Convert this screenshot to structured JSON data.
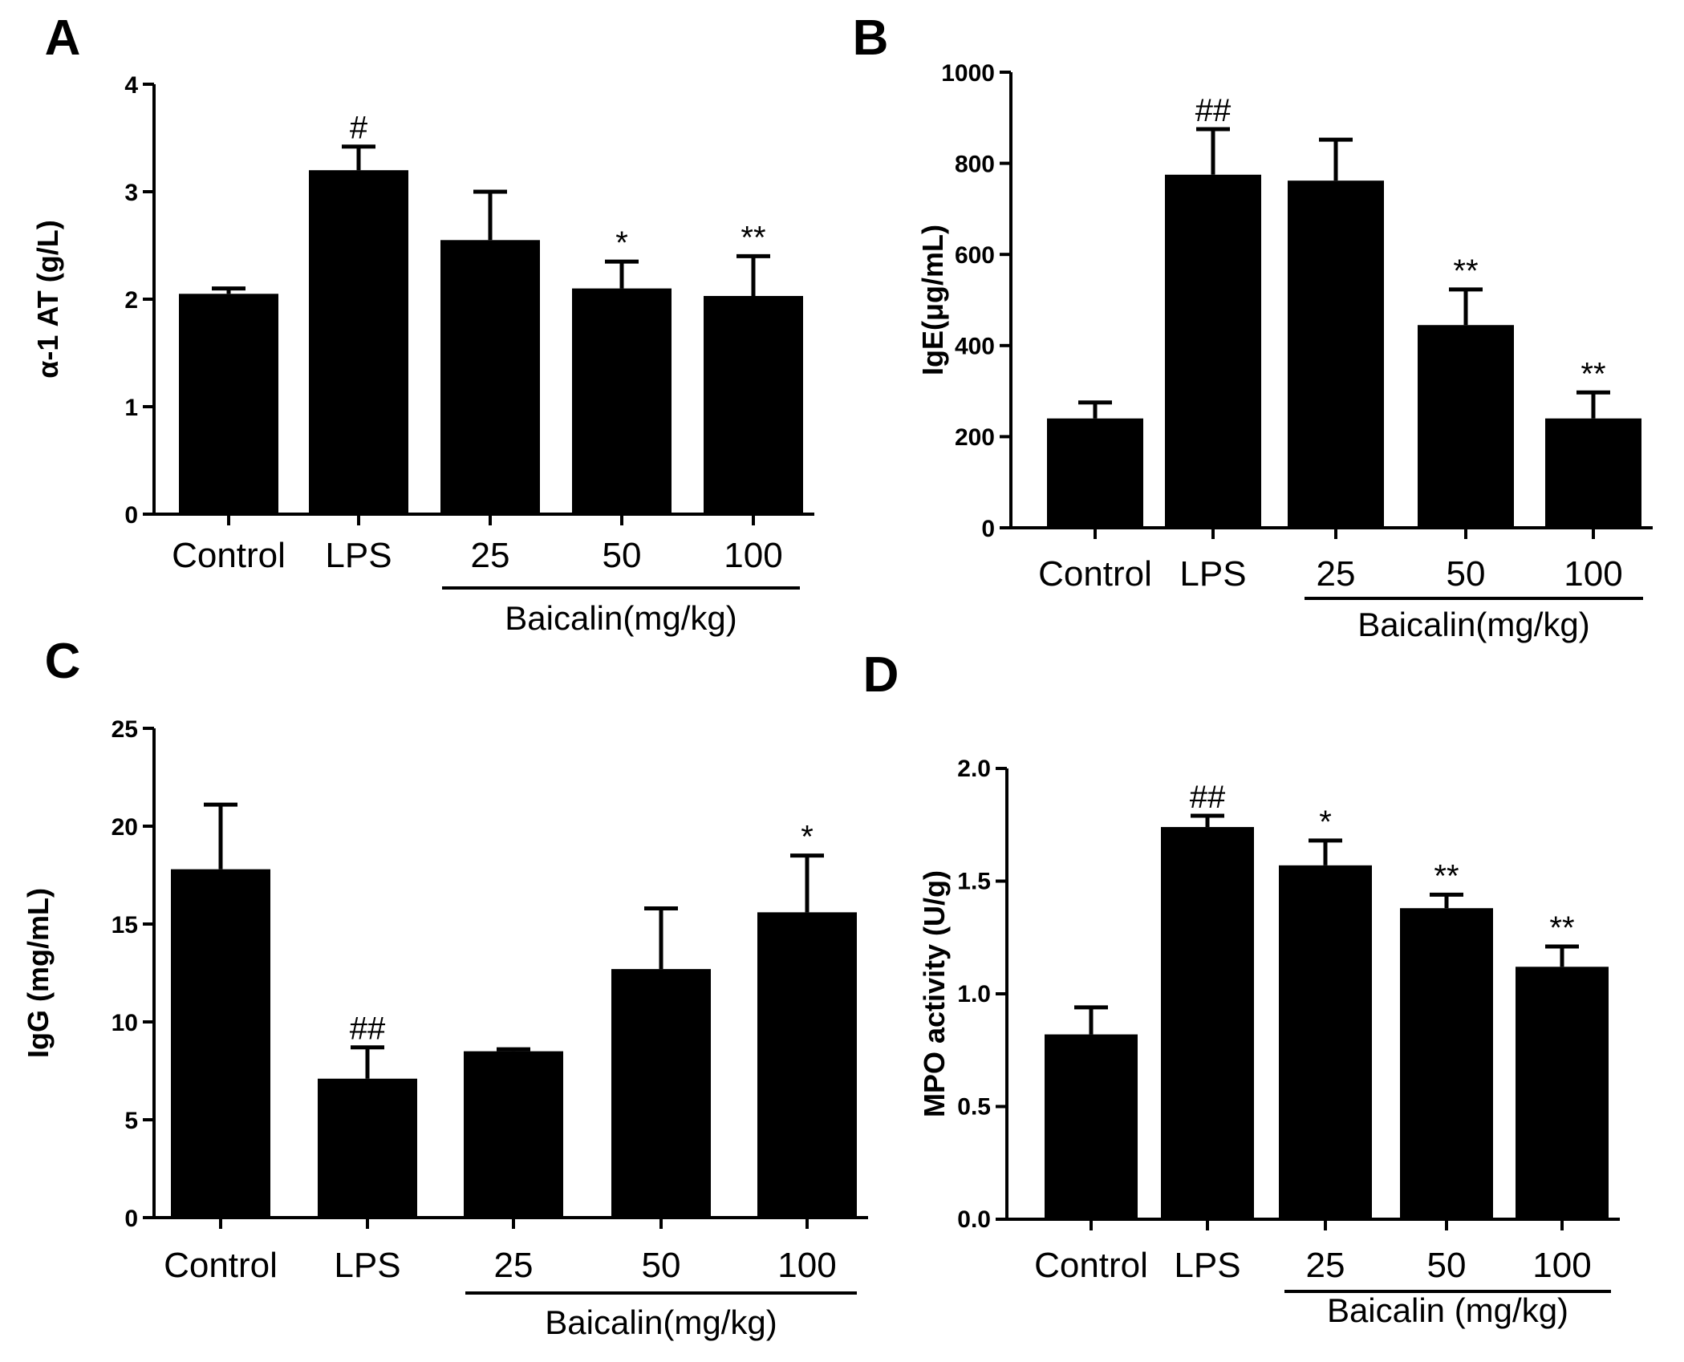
{
  "colors": {
    "bar": "#000000",
    "axis": "#000000",
    "background": "#ffffff"
  },
  "chart_data": [
    {
      "panel": "A",
      "type": "bar",
      "categories": [
        "Control",
        "LPS",
        "25",
        "50",
        "100"
      ],
      "values": [
        2.05,
        3.2,
        2.55,
        2.1,
        2.03
      ],
      "errors": [
        0.05,
        0.22,
        0.45,
        0.25,
        0.37
      ],
      "significance": [
        "",
        "#",
        "",
        "*",
        "**"
      ],
      "ylabel": "α-1 AT (g/L)",
      "ylim": [
        0,
        4
      ],
      "yticks": [
        "0",
        "1",
        "2",
        "3",
        "4"
      ],
      "group_label": "Baicalin(mg/kg)"
    },
    {
      "panel": "B",
      "type": "bar",
      "categories": [
        "Control",
        "LPS",
        "25",
        "50",
        "100"
      ],
      "values": [
        240,
        775,
        762,
        445,
        240
      ],
      "errors": [
        35,
        100,
        90,
        78,
        57
      ],
      "significance": [
        "",
        "##",
        "",
        "**",
        "**"
      ],
      "ylabel": "IgE(μg/mL)",
      "ylim": [
        0,
        1000
      ],
      "yticks": [
        "0",
        "200",
        "400",
        "600",
        "800",
        "1000"
      ],
      "group_label": "Baicalin(mg/kg)"
    },
    {
      "panel": "C",
      "type": "bar",
      "categories": [
        "Control",
        "LPS",
        "25",
        "50",
        "100"
      ],
      "values": [
        17.8,
        7.1,
        8.5,
        12.7,
        15.6
      ],
      "errors": [
        3.3,
        1.6,
        0.1,
        3.1,
        2.9
      ],
      "significance": [
        "",
        "##",
        "",
        "",
        "*"
      ],
      "ylabel": "IgG (mg/mL)",
      "ylim": [
        0,
        25
      ],
      "yticks": [
        "0",
        "5",
        "10",
        "15",
        "20",
        "25"
      ],
      "group_label": "Baicalin(mg/kg)"
    },
    {
      "panel": "D",
      "type": "bar",
      "categories": [
        "Control",
        "LPS",
        "25",
        "50",
        "100"
      ],
      "values": [
        0.82,
        1.74,
        1.57,
        1.38,
        1.12
      ],
      "errors": [
        0.12,
        0.05,
        0.11,
        0.06,
        0.09
      ],
      "significance": [
        "",
        "##",
        "*",
        "**",
        "**"
      ],
      "ylabel": "MPO activity (U/g)",
      "ylim": [
        0,
        2.0
      ],
      "yticks": [
        "0.0",
        "0.5",
        "1.0",
        "1.5",
        "2.0"
      ],
      "group_label": "Baicalin (mg/kg)"
    }
  ]
}
